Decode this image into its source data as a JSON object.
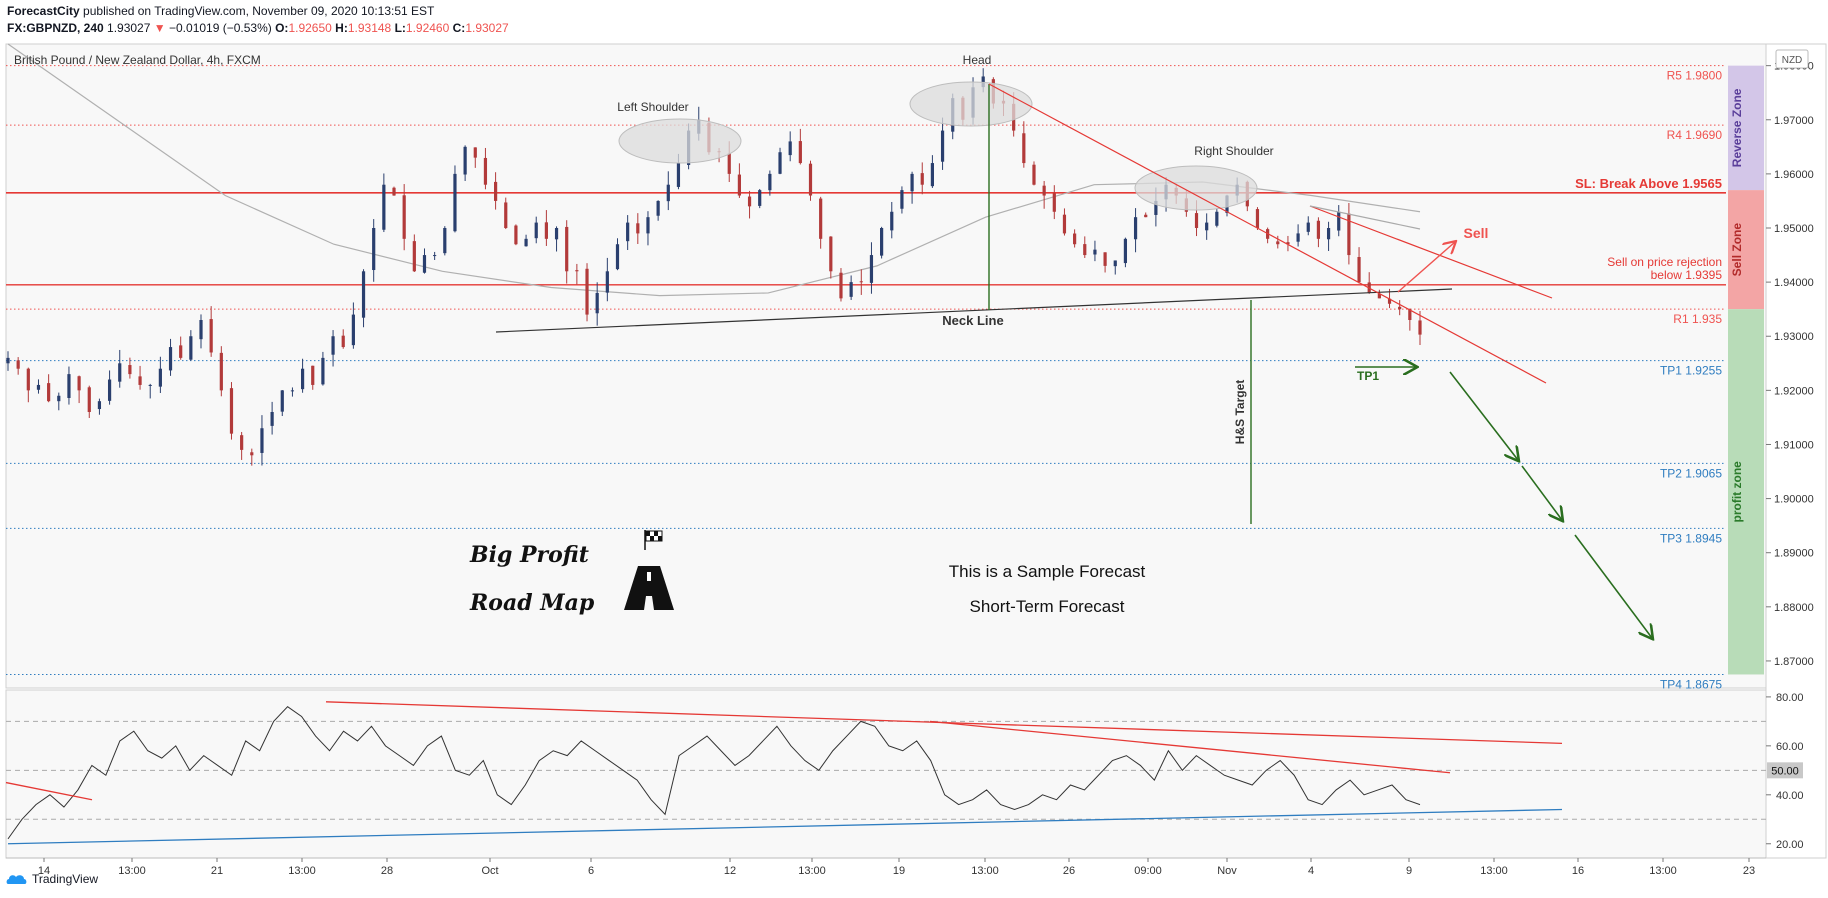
{
  "header": {
    "publisher": "ForecastCity",
    "published_text": "published on TradingView.com, November 09, 2020 10:13:51 EST",
    "symbol": "FX:GBPNZD, 240",
    "last": "1.93027",
    "change": "−0.01019 (−0.53%)",
    "o_label": "O:",
    "o": "1.92650",
    "h_label": "H:",
    "h": "1.93148",
    "l_label": "L:",
    "l": "1.92460",
    "c_label": "C:",
    "c": "1.93027"
  },
  "footer": {
    "brand": "TradingView"
  },
  "colors": {
    "up": "#2a3f6e",
    "down": "#b23a3a",
    "resistance": "#ef5350",
    "support": "#2f7dc0",
    "green": "#2a6e1f",
    "ma": "#b0b0b0"
  },
  "chart_data": {
    "type": "candlestick",
    "title": "British Pound / New Zealand Dollar, 4h, FXCM",
    "currency_badge": "NZD",
    "ylim": [
      1.865,
      1.984
    ],
    "y_ticks": [
      "1.98000",
      "1.97000",
      "1.96000",
      "1.95000",
      "1.94000",
      "1.93000",
      "1.92000",
      "1.91000",
      "1.90000",
      "1.89000",
      "1.88000",
      "1.87000"
    ],
    "x_ticks": [
      "14",
      "13:00",
      "21",
      "13:00",
      "28",
      "Oct",
      "6",
      "12",
      "13:00",
      "19",
      "13:00",
      "26",
      "09:00",
      "Nov",
      "4",
      "9",
      "13:00",
      "16",
      "13:00",
      "23"
    ],
    "price_path": [
      [
        1.926,
        1.924,
        1.92,
        1.921,
        1.918,
        1.919,
        1.923,
        1.92,
        1.916,
        1.918,
        1.922,
        1.925,
        1.923,
        1.921
      ],
      [
        1.921,
        1.924,
        1.928,
        1.926,
        1.93,
        1.933,
        1.927,
        1.92,
        1.912,
        1.909,
        1.908,
        1.913,
        1.916,
        1.92
      ],
      [
        1.92,
        1.924,
        1.921,
        1.926,
        1.93,
        1.928,
        1.934,
        1.942,
        1.95,
        1.958,
        1.956,
        1.948,
        1.942,
        1.945
      ],
      [
        1.945,
        1.95,
        1.96,
        1.965,
        1.963,
        1.958,
        1.955,
        1.95,
        1.947,
        1.948,
        1.951,
        1.948,
        1.95,
        1.942
      ],
      [
        1.942,
        1.934,
        1.938,
        1.942,
        1.947,
        1.951,
        1.949,
        1.952,
        1.955,
        1.958,
        1.962,
        1.968,
        1.97,
        1.964
      ],
      [
        1.964,
        1.96,
        1.956,
        1.954,
        1.957,
        1.96,
        1.964,
        1.966,
        1.962,
        1.956,
        1.948,
        1.942,
        1.937,
        1.94
      ],
      [
        1.94,
        1.945,
        1.95,
        1.953,
        1.957,
        1.96,
        1.958,
        1.962,
        1.968,
        1.974,
        1.97,
        1.976,
        1.978,
        1.973
      ],
      [
        1.973,
        1.968,
        1.962,
        1.958,
        1.956,
        1.953,
        1.949,
        1.947,
        1.945,
        1.946,
        1.943,
        1.944,
        1.948,
        1.952
      ],
      [
        1.952,
        1.955,
        1.958,
        1.956,
        1.953,
        1.95,
        1.951,
        1.953,
        1.956,
        1.958,
        1.954,
        1.95,
        1.948,
        1.947
      ],
      [
        1.947,
        1.949,
        1.951,
        1.948,
        1.95,
        1.953,
        1.945,
        1.94,
        1.938,
        1.937,
        1.936,
        1.935,
        1.933,
        1.9303
      ]
    ],
    "moving_average": [
      1.984,
      1.97,
      1.956,
      1.947,
      1.942,
      1.939,
      1.9375,
      1.938,
      1.943,
      1.952,
      1.958,
      1.9585,
      1.956,
      1.953
    ],
    "levels": [
      {
        "label": "R5 1.9800",
        "value": 1.98,
        "style": "res"
      },
      {
        "label": "R4 1.9690",
        "value": 1.969,
        "style": "res"
      },
      {
        "label": "SL: Break Above 1.9565",
        "value": 1.9565,
        "style": "sl"
      },
      {
        "label": "Sell on price rejection",
        "label2": "below 1.9395",
        "value": 1.9395,
        "style": "sellrej"
      },
      {
        "label": "R1 1.935",
        "value": 1.935,
        "style": "res"
      },
      {
        "label": "TP1 1.9255",
        "value": 1.9255,
        "style": "tp"
      },
      {
        "label": "TP2 1.9065",
        "value": 1.9065,
        "style": "tp"
      },
      {
        "label": "TP3 1.8945",
        "value": 1.8945,
        "style": "tp"
      },
      {
        "label": "TP4 1.8675",
        "value": 1.8675,
        "style": "tp"
      }
    ],
    "zones": [
      {
        "label": "Reverse Zone",
        "from": 1.98,
        "to": 1.957,
        "color": "#d3c6e8",
        "text": "#5a3e9a"
      },
      {
        "label": "Sell Zone",
        "from": 1.957,
        "to": 1.935,
        "color": "#f3a5a5",
        "text": "#b22a2a"
      },
      {
        "label": "profit zone",
        "from": 1.935,
        "to": 1.8675,
        "color": "#b8dcb8",
        "text": "#2a7a2a"
      }
    ],
    "annotations": {
      "head": "Head",
      "left_shoulder": "Left Shoulder",
      "right_shoulder": "Right Shoulder",
      "neck_line": "Neck Line",
      "hs_target": "H&S Target",
      "sell": "Sell",
      "tp1": "TP1",
      "big_profit": "Big Profit",
      "road_map": "Road Map",
      "sample": "This is a Sample Forecast",
      "short_term": "Short-Term Forecast"
    },
    "rsi": {
      "ylim": [
        15,
        82
      ],
      "y_ticks": [
        "80.00",
        "60.00",
        "40.00",
        "20.00"
      ],
      "current_label": "50.00",
      "values": [
        22,
        30,
        36,
        40,
        35,
        42,
        52,
        48,
        62,
        66,
        58,
        55,
        60,
        50,
        56,
        52,
        48,
        62,
        58,
        70,
        76,
        72,
        64,
        58,
        66,
        62,
        68,
        60,
        56,
        52,
        60,
        64,
        50,
        48,
        54,
        40,
        36,
        44,
        54,
        58,
        56,
        62,
        58,
        54,
        50,
        46,
        38,
        32,
        56,
        60,
        64,
        58,
        52,
        56,
        62,
        68,
        60,
        54,
        50,
        58,
        64,
        70,
        68,
        60,
        58,
        62,
        54,
        40,
        36,
        38,
        42,
        36,
        34,
        36,
        40,
        38,
        44,
        42,
        48,
        54,
        56,
        52,
        46,
        58,
        50,
        56,
        52,
        48,
        46,
        44,
        50,
        54,
        48,
        38,
        36,
        42,
        46,
        40,
        42,
        44,
        38,
        36
      ]
    }
  }
}
